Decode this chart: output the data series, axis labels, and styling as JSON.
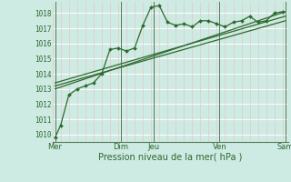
{
  "bg_color": "#cdeae3",
  "plot_bg_color": "#cdeae3",
  "grid_h_color": "#ffffff",
  "grid_v_color": "#e8c8c8",
  "line_color": "#2d6a2d",
  "ylim": [
    1009.5,
    1018.75
  ],
  "xlim": [
    0,
    172
  ],
  "xlabel": "Pression niveau de la mer( hPa )",
  "xlabel_color": "#2d6a2d",
  "ylabel_ticks": [
    1010,
    1011,
    1012,
    1013,
    1014,
    1015,
    1016,
    1017,
    1018
  ],
  "day_labels": [
    "Mer",
    "Dim",
    "Jeu",
    "Ven",
    "Sam"
  ],
  "day_positions": [
    2,
    50,
    74,
    122,
    170
  ],
  "day_vline_color": "#5a7a5a",
  "series1_x": [
    2,
    6,
    12,
    18,
    24,
    30,
    36,
    42,
    48,
    54,
    60,
    66,
    72,
    78,
    84,
    90,
    96,
    102,
    108,
    114,
    120,
    126,
    132,
    138,
    144,
    150,
    156,
    162,
    168
  ],
  "series1_y": [
    1009.8,
    1010.6,
    1012.6,
    1013.0,
    1013.2,
    1013.4,
    1014.0,
    1015.6,
    1015.7,
    1015.5,
    1015.7,
    1017.2,
    1018.4,
    1018.5,
    1017.4,
    1017.2,
    1017.3,
    1017.1,
    1017.5,
    1017.5,
    1017.3,
    1017.1,
    1017.4,
    1017.5,
    1017.8,
    1017.4,
    1017.5,
    1018.0,
    1018.1
  ],
  "series2_x": [
    2,
    170
  ],
  "series2_y": [
    1013.0,
    1018.1
  ],
  "series3_x": [
    2,
    170
  ],
  "series3_y": [
    1013.2,
    1017.5
  ],
  "series4_x": [
    2,
    170
  ],
  "series4_y": [
    1013.4,
    1017.8
  ]
}
